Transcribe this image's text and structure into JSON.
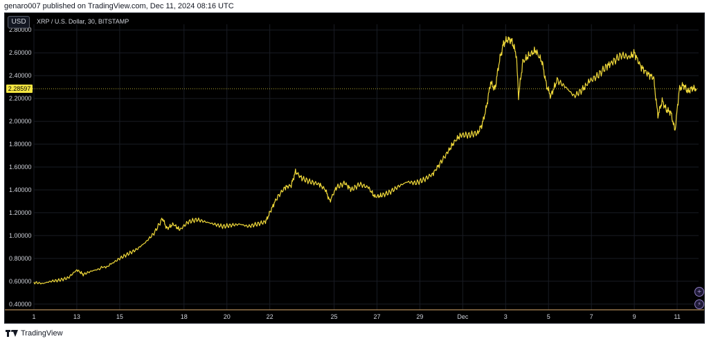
{
  "header": {
    "published_line": "genaro007 published on TradingView.com, Dec 11, 2024 08:16 UTC"
  },
  "chart_header": {
    "currency_button": "USD",
    "symbol_line": "XRP / U.S. Dollar, 30, BITSTAMP"
  },
  "footer": {
    "brand": "TradingView"
  },
  "colors": {
    "background": "#000000",
    "price_line": "#f0d93a",
    "last_price_tag": "#f5e642",
    "grid": "#191c24",
    "axis_text": "#d1d4dc"
  },
  "icons": [
    "plus-circle-icon",
    "lightning-icon",
    "tradingview-logo-icon"
  ],
  "chart_data": {
    "type": "line",
    "title": "XRP / U.S. Dollar, 30, BITSTAMP",
    "xlabel": "",
    "ylabel": "",
    "ylim": [
      0.35,
      2.85
    ],
    "xlim": [
      "Nov 1",
      "Dec 11"
    ],
    "grid": true,
    "last_price": 2.28597,
    "last_price_label": "2.28597",
    "y_ticks": [
      0.4,
      0.6,
      0.8,
      1.0,
      1.2,
      1.4,
      1.6,
      1.8,
      2.0,
      2.2,
      2.4,
      2.6,
      2.8
    ],
    "y_tick_labels": [
      "0.40000",
      "0.60000",
      "0.80000",
      "1.00000",
      "1.20000",
      "1.40000",
      "1.60000",
      "1.80000",
      "2.00000",
      "2.20000",
      "2.40000",
      "2.60000",
      "2.80000"
    ],
    "x_ticks": [
      {
        "label": "1",
        "day": 1
      },
      {
        "label": "13",
        "day": 3
      },
      {
        "label": "15",
        "day": 5
      },
      {
        "label": "18",
        "day": 8
      },
      {
        "label": "20",
        "day": 10
      },
      {
        "label": "22",
        "day": 12
      },
      {
        "label": "25",
        "day": 15
      },
      {
        "label": "27",
        "day": 17
      },
      {
        "label": "29",
        "day": 19
      },
      {
        "label": "Dec",
        "day": 21
      },
      {
        "label": "3",
        "day": 23
      },
      {
        "label": "5",
        "day": 25
      },
      {
        "label": "7",
        "day": 27
      },
      {
        "label": "9",
        "day": 29
      },
      {
        "label": "11",
        "day": 31
      }
    ],
    "series": [
      {
        "values": [
          [
            1.0,
            0.59
          ],
          [
            1.4,
            0.58
          ],
          [
            1.8,
            0.6
          ],
          [
            2.2,
            0.61
          ],
          [
            2.6,
            0.63
          ],
          [
            3.0,
            0.7
          ],
          [
            3.3,
            0.66
          ],
          [
            3.7,
            0.69
          ],
          [
            4.1,
            0.71
          ],
          [
            4.6,
            0.75
          ],
          [
            5.0,
            0.8
          ],
          [
            5.4,
            0.84
          ],
          [
            5.8,
            0.88
          ],
          [
            6.2,
            0.94
          ],
          [
            6.6,
            1.02
          ],
          [
            7.0,
            1.15
          ],
          [
            7.2,
            1.06
          ],
          [
            7.5,
            1.1
          ],
          [
            7.8,
            1.05
          ],
          [
            8.2,
            1.12
          ],
          [
            8.6,
            1.14
          ],
          [
            9.0,
            1.12
          ],
          [
            9.4,
            1.1
          ],
          [
            9.8,
            1.08
          ],
          [
            10.2,
            1.09
          ],
          [
            10.6,
            1.1
          ],
          [
            11.0,
            1.08
          ],
          [
            11.4,
            1.1
          ],
          [
            11.8,
            1.12
          ],
          [
            12.0,
            1.2
          ],
          [
            12.3,
            1.32
          ],
          [
            12.7,
            1.42
          ],
          [
            13.0,
            1.44
          ],
          [
            13.2,
            1.56
          ],
          [
            13.5,
            1.5
          ],
          [
            13.9,
            1.47
          ],
          [
            14.3,
            1.45
          ],
          [
            14.6,
            1.4
          ],
          [
            14.8,
            1.3
          ],
          [
            15.1,
            1.42
          ],
          [
            15.5,
            1.46
          ],
          [
            15.8,
            1.4
          ],
          [
            16.2,
            1.45
          ],
          [
            16.6,
            1.42
          ],
          [
            16.9,
            1.34
          ],
          [
            17.2,
            1.35
          ],
          [
            17.6,
            1.38
          ],
          [
            18.0,
            1.43
          ],
          [
            18.4,
            1.47
          ],
          [
            18.8,
            1.46
          ],
          [
            19.2,
            1.49
          ],
          [
            19.6,
            1.54
          ],
          [
            19.9,
            1.62
          ],
          [
            20.3,
            1.73
          ],
          [
            20.6,
            1.82
          ],
          [
            20.9,
            1.88
          ],
          [
            21.3,
            1.88
          ],
          [
            21.7,
            1.9
          ],
          [
            21.9,
            1.97
          ],
          [
            22.1,
            2.12
          ],
          [
            22.3,
            2.34
          ],
          [
            22.5,
            2.28
          ],
          [
            22.7,
            2.52
          ],
          [
            22.9,
            2.68
          ],
          [
            23.1,
            2.72
          ],
          [
            23.3,
            2.7
          ],
          [
            23.5,
            2.58
          ],
          [
            23.6,
            2.22
          ],
          [
            23.8,
            2.52
          ],
          [
            24.1,
            2.58
          ],
          [
            24.4,
            2.62
          ],
          [
            24.7,
            2.52
          ],
          [
            24.9,
            2.32
          ],
          [
            25.1,
            2.22
          ],
          [
            25.4,
            2.36
          ],
          [
            25.8,
            2.3
          ],
          [
            26.2,
            2.22
          ],
          [
            26.6,
            2.28
          ],
          [
            26.9,
            2.35
          ],
          [
            27.3,
            2.4
          ],
          [
            27.7,
            2.48
          ],
          [
            28.0,
            2.52
          ],
          [
            28.4,
            2.58
          ],
          [
            28.8,
            2.56
          ],
          [
            29.0,
            2.6
          ],
          [
            29.3,
            2.48
          ],
          [
            29.6,
            2.42
          ],
          [
            29.9,
            2.38
          ],
          [
            30.1,
            2.05
          ],
          [
            30.3,
            2.18
          ],
          [
            30.5,
            2.1
          ],
          [
            30.7,
            2.08
          ],
          [
            30.9,
            1.92
          ],
          [
            31.1,
            2.28
          ],
          [
            31.3,
            2.32
          ],
          [
            31.5,
            2.26
          ],
          [
            31.7,
            2.29
          ],
          [
            31.9,
            2.28597
          ]
        ]
      }
    ]
  }
}
